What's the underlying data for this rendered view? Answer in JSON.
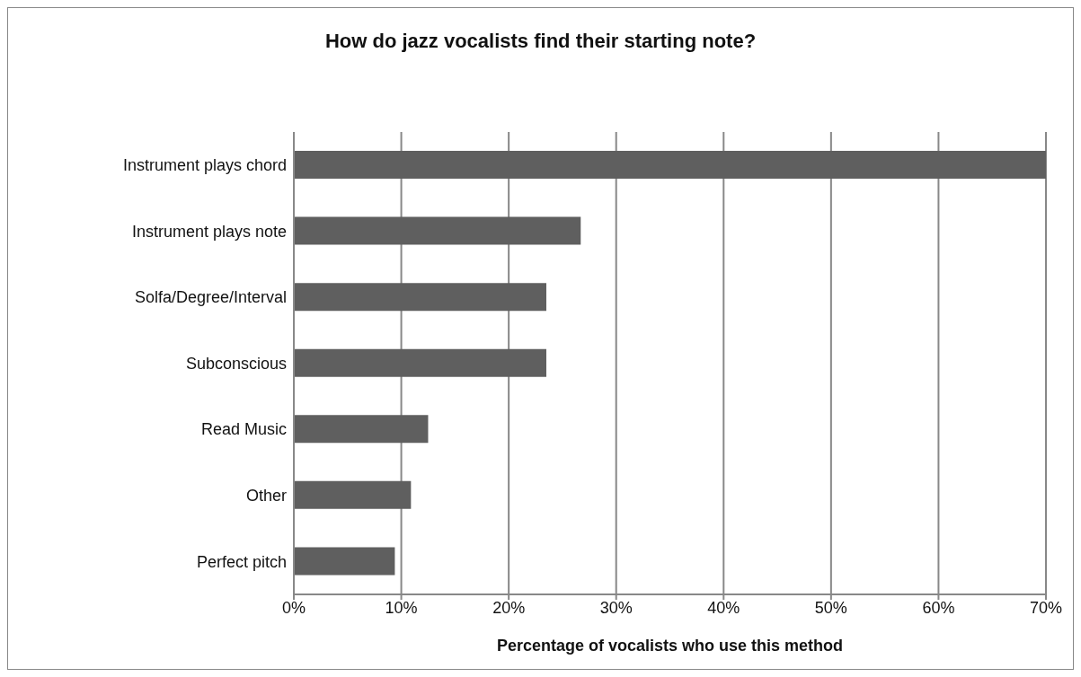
{
  "chart_data": {
    "type": "bar",
    "orientation": "horizontal",
    "title": "How do jazz vocalists find their starting note?",
    "xlabel": "Percentage of vocalists who use this method",
    "categories": [
      "Instrument plays chord",
      "Instrument plays note",
      "Solfa/Degree/Interval",
      "Subconscious",
      "Read Music",
      "Other",
      "Perfect pitch"
    ],
    "values": [
      70,
      26.7,
      23.5,
      23.5,
      12.5,
      10.9,
      9.4
    ],
    "color": "#5f5f5f",
    "xlim": [
      0,
      70
    ],
    "xticks": [
      {
        "value": 0,
        "label": "0%"
      },
      {
        "value": 10,
        "label": "10%"
      },
      {
        "value": 20,
        "label": "20%"
      },
      {
        "value": 30,
        "label": "30%"
      },
      {
        "value": 40,
        "label": "40%"
      },
      {
        "value": 50,
        "label": "50%"
      },
      {
        "value": 60,
        "label": "60%"
      },
      {
        "value": 70,
        "label": "70%"
      }
    ],
    "grid": "x"
  }
}
